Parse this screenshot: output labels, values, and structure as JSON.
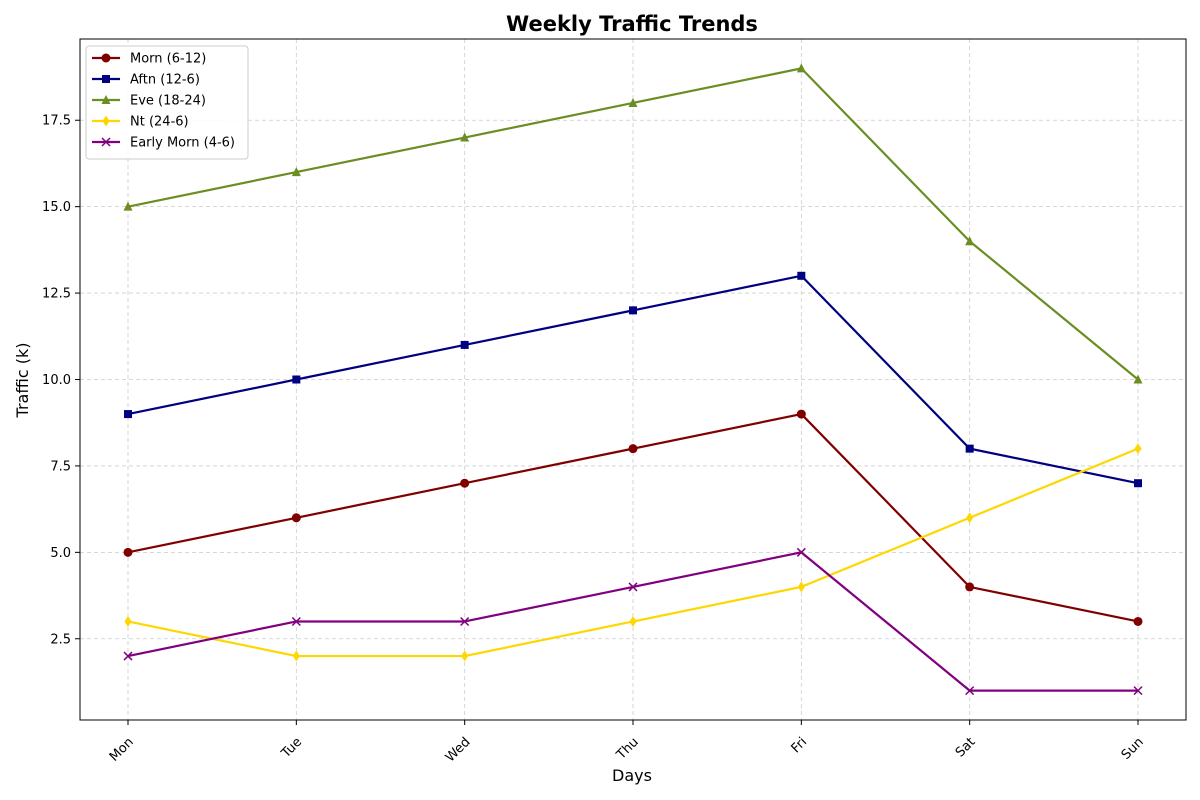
{
  "chart_data": {
    "type": "line",
    "title": "Weekly Traffic Trends",
    "xlabel": "Days",
    "ylabel": "Traffic (k)",
    "categories": [
      "Mon",
      "Tue",
      "Wed",
      "Thu",
      "Fri",
      "Sat",
      "Sun"
    ],
    "ylim": [
      0.15,
      19.85
    ],
    "yticks": [
      2.5,
      5.0,
      7.5,
      10.0,
      12.5,
      15.0,
      17.5
    ],
    "ytick_labels": [
      "2.5",
      "5.0",
      "7.5",
      "10.0",
      "12.5",
      "15.0",
      "17.5"
    ],
    "grid": true,
    "legend_position": "top-left",
    "series": [
      {
        "name": "Morn (6-12)",
        "values": [
          5,
          6,
          7,
          8,
          9,
          4,
          3
        ],
        "color": "#800000",
        "marker": "circle"
      },
      {
        "name": "Aftn (12-6)",
        "values": [
          9,
          10,
          11,
          12,
          13,
          8,
          7
        ],
        "color": "#000080",
        "marker": "square"
      },
      {
        "name": "Eve (18-24)",
        "values": [
          15,
          16,
          17,
          18,
          19,
          14,
          10
        ],
        "color": "#6b8e23",
        "marker": "triangle"
      },
      {
        "name": "Nt (24-6)",
        "values": [
          3,
          2,
          2,
          3,
          4,
          6,
          8
        ],
        "color": "#ffd700",
        "marker": "diamond"
      },
      {
        "name": "Early Morn (4-6)",
        "values": [
          2,
          3,
          3,
          4,
          5,
          1,
          1
        ],
        "color": "#800080",
        "marker": "x"
      }
    ]
  }
}
